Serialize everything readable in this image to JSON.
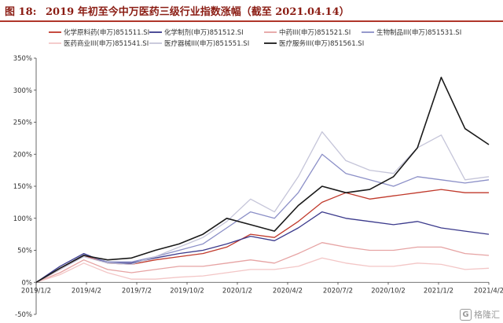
{
  "header": {
    "figure_label": "图 18:",
    "title": "2019 年初至今中万医药三级行业指数涨幅（截至 2021.04.14）"
  },
  "watermark": {
    "icon": "g-logo-icon",
    "text": "格隆汇"
  },
  "chart_data": {
    "type": "line",
    "title": "2019 年初至今中万医药三级行业指数涨幅（截至 2021.04.14）",
    "xlabel": "",
    "ylabel": "",
    "ylim": [
      -50,
      350
    ],
    "yticks": [
      -50,
      0,
      50,
      100,
      150,
      200,
      250,
      300,
      350
    ],
    "ytick_labels": [
      "-50%",
      "0%",
      "50%",
      "100%",
      "150%",
      "200%",
      "250%",
      "300%",
      "350%"
    ],
    "xticks": [
      "2019/1/2",
      "2019/4/2",
      "2019/7/2",
      "2019/10/2",
      "2020/1/2",
      "2020/4/2",
      "2020/7/2",
      "2020/10/2",
      "2021/1/2",
      "2021/4/2"
    ],
    "legend_position": "top",
    "grid": false,
    "x": [
      "2019/1/2",
      "2019/2/15",
      "2019/4/2",
      "2019/5/15",
      "2019/7/2",
      "2019/8/15",
      "2019/10/2",
      "2019/11/15",
      "2020/1/2",
      "2020/2/15",
      "2020/4/2",
      "2020/5/15",
      "2020/7/2",
      "2020/8/15",
      "2020/10/2",
      "2020/11/15",
      "2021/1/2",
      "2021/2/15",
      "2021/3/15",
      "2021/4/14"
    ],
    "series": [
      {
        "name": "化学原料药(申万)851511.SI",
        "color": "#c0392b",
        "values": [
          0,
          20,
          42,
          30,
          28,
          35,
          40,
          45,
          55,
          75,
          70,
          95,
          125,
          140,
          130,
          135,
          140,
          145,
          140,
          140
        ]
      },
      {
        "name": "化学制剂(申万)851512.SI",
        "color": "#3b3a8c",
        "values": [
          0,
          25,
          45,
          30,
          30,
          38,
          45,
          50,
          60,
          72,
          65,
          85,
          110,
          100,
          95,
          90,
          95,
          85,
          80,
          75
        ]
      },
      {
        "name": "中药III(申万)851521.SI",
        "color": "#e6a3a3",
        "values": [
          0,
          15,
          35,
          20,
          15,
          20,
          25,
          25,
          30,
          35,
          30,
          45,
          62,
          55,
          50,
          50,
          55,
          55,
          45,
          42
        ]
      },
      {
        "name": "生物制品III(申万)851531.SI",
        "color": "#8b8fc7",
        "values": [
          0,
          22,
          43,
          32,
          32,
          40,
          50,
          60,
          85,
          110,
          100,
          140,
          200,
          170,
          160,
          150,
          165,
          160,
          155,
          160
        ]
      },
      {
        "name": "医药商业III(申万)851541.SI",
        "color": "#f3c6c6",
        "values": [
          0,
          12,
          30,
          15,
          5,
          5,
          8,
          10,
          15,
          20,
          20,
          25,
          38,
          30,
          25,
          25,
          30,
          28,
          20,
          22
        ]
      },
      {
        "name": "医疗器械III(申万)851551.SI",
        "color": "#c5c5d9",
        "values": [
          0,
          20,
          40,
          30,
          28,
          40,
          55,
          70,
          95,
          130,
          110,
          165,
          235,
          190,
          175,
          170,
          210,
          230,
          160,
          165
        ]
      },
      {
        "name": "医疗服务III(申万)851561.SI",
        "color": "#1a1a1a",
        "values": [
          0,
          22,
          42,
          35,
          38,
          50,
          60,
          75,
          100,
          90,
          80,
          120,
          150,
          140,
          145,
          165,
          210,
          320,
          240,
          215
        ]
      }
    ]
  }
}
